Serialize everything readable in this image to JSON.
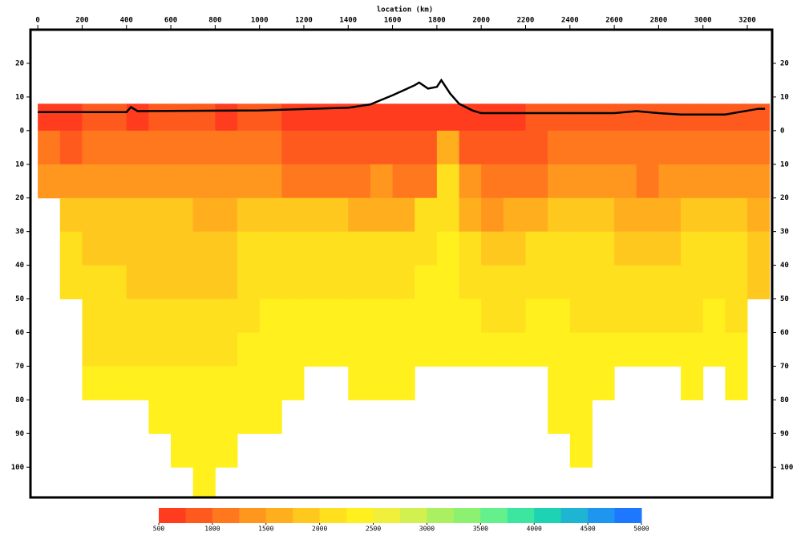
{
  "chart_data": {
    "type": "heatmap",
    "xlabel": "location (km)",
    "xlim": [
      -33,
      3312
    ],
    "ylim": [
      -30,
      109
    ],
    "xticks": [
      0,
      200,
      400,
      600,
      800,
      1000,
      1200,
      1400,
      1600,
      1800,
      2000,
      2200,
      2400,
      2600,
      2800,
      3000,
      3200
    ],
    "yticks": [
      {
        "value": -20,
        "label": "20"
      },
      {
        "value": -10,
        "label": "10"
      },
      0,
      10,
      20,
      30,
      40,
      50,
      60,
      70,
      80,
      90,
      100
    ],
    "x_bins": [
      0,
      100,
      200,
      300,
      400,
      500,
      600,
      700,
      800,
      900,
      1000,
      1100,
      1200,
      1300,
      1400,
      1500,
      1600,
      1700,
      1800,
      1900,
      2000,
      2100,
      2200,
      2300,
      2400,
      2500,
      2600,
      2700,
      2800,
      2900,
      3000,
      3100,
      3200,
      3300
    ],
    "y_bins": [
      -8,
      0,
      10,
      20,
      30,
      40,
      50,
      60,
      70,
      80,
      90,
      100,
      110
    ],
    "values": [
      [
        700,
        700,
        800,
        800,
        700,
        800,
        800,
        800,
        700,
        800,
        800,
        700,
        700,
        700,
        700,
        600,
        600,
        600,
        600,
        700,
        700,
        700,
        800,
        800,
        800,
        800,
        800,
        800,
        800,
        800,
        800,
        800,
        800
      ],
      [
        1100,
        900,
        1100,
        1100,
        1100,
        1200,
        1100,
        1000,
        1100,
        1100,
        1000,
        900,
        900,
        800,
        800,
        900,
        900,
        800,
        1600,
        900,
        800,
        800,
        900,
        1000,
        1100,
        1100,
        1100,
        1000,
        1000,
        1100,
        1100,
        1000,
        1000
      ],
      [
        1300,
        1300,
        1300,
        1400,
        1300,
        1400,
        1300,
        1300,
        1400,
        1400,
        1300,
        1200,
        1100,
        1100,
        1200,
        1300,
        1200,
        1100,
        2100,
        1300,
        1000,
        1100,
        1200,
        1300,
        1400,
        1300,
        1300,
        1200,
        1300,
        1300,
        1400,
        1300,
        1300
      ],
      [
        null,
        1900,
        1800,
        1800,
        1800,
        1800,
        1800,
        1700,
        1700,
        1800,
        1900,
        1900,
        1800,
        1800,
        1700,
        1700,
        1600,
        2000,
        2200,
        1500,
        1400,
        1500,
        1700,
        1800,
        1900,
        1800,
        1700,
        1600,
        1700,
        1800,
        1900,
        1800,
        1500
      ],
      [
        null,
        2100,
        1900,
        1800,
        1800,
        1800,
        1800,
        1800,
        1800,
        2000,
        2100,
        2100,
        2000,
        2000,
        2000,
        2100,
        2100,
        2200,
        2300,
        2000,
        1800,
        1900,
        2100,
        2100,
        2100,
        2000,
        1900,
        1800,
        1800,
        2000,
        2100,
        2000,
        1800
      ],
      [
        null,
        2100,
        2100,
        2000,
        1900,
        1900,
        1900,
        1800,
        1900,
        2100,
        2200,
        2200,
        2200,
        2200,
        2200,
        2200,
        2200,
        2300,
        2300,
        2200,
        2100,
        2100,
        2200,
        2200,
        2200,
        2200,
        2100,
        2100,
        2100,
        2200,
        2200,
        2100,
        1900
      ],
      [
        null,
        null,
        2200,
        2200,
        2100,
        2000,
        2100,
        2000,
        2100,
        2200,
        2300,
        2300,
        2300,
        2300,
        2300,
        2300,
        2300,
        2300,
        2300,
        2300,
        2200,
        2200,
        2300,
        2300,
        2200,
        2200,
        2200,
        2200,
        2200,
        2200,
        2300,
        2200,
        null
      ],
      [
        null,
        null,
        2200,
        2200,
        2200,
        2100,
        2200,
        2200,
        2200,
        2300,
        2300,
        2300,
        2300,
        2300,
        2300,
        2300,
        2300,
        2300,
        2300,
        2300,
        2300,
        2300,
        2300,
        2300,
        2300,
        2300,
        2300,
        2300,
        2300,
        2300,
        2300,
        2300,
        null
      ],
      [
        null,
        null,
        2300,
        2300,
        2300,
        2300,
        2300,
        2300,
        2300,
        2300,
        2300,
        2300,
        null,
        null,
        2300,
        2300,
        2300,
        null,
        null,
        null,
        null,
        null,
        null,
        2300,
        2300,
        2300,
        null,
        null,
        null,
        2300,
        null,
        2300,
        null
      ],
      [
        null,
        null,
        null,
        null,
        null,
        2400,
        2400,
        2400,
        2400,
        2400,
        2400,
        null,
        null,
        null,
        null,
        null,
        null,
        null,
        null,
        null,
        null,
        null,
        null,
        2400,
        2400,
        null,
        null,
        null,
        null,
        null,
        null,
        null,
        null
      ],
      [
        null,
        null,
        null,
        null,
        null,
        null,
        2400,
        2400,
        2400,
        null,
        null,
        null,
        null,
        null,
        null,
        null,
        null,
        null,
        null,
        null,
        null,
        null,
        null,
        null,
        2400,
        null,
        null,
        null,
        null,
        null,
        null,
        null,
        null
      ],
      [
        null,
        null,
        null,
        null,
        null,
        null,
        null,
        2400,
        null,
        null,
        null,
        null,
        null,
        null,
        null,
        null,
        null,
        null,
        null,
        null,
        null,
        null,
        null,
        null,
        null,
        null,
        null,
        null,
        null,
        null,
        null,
        null,
        null
      ]
    ],
    "series": [
      {
        "color": "#000000",
        "x": [
          0,
          400,
          420,
          450,
          1000,
          1400,
          1500,
          1600,
          1700,
          1720,
          1760,
          1800,
          1820,
          1860,
          1900,
          1960,
          2000,
          2600,
          2700,
          2800,
          2900,
          3100,
          3250,
          3280
        ],
        "values": [
          -5.5,
          -5.5,
          -7,
          -5.8,
          -6,
          -6.8,
          -7.8,
          -10.5,
          -13.5,
          -14.3,
          -12.5,
          -13,
          -15,
          -11,
          -8,
          -6,
          -5.2,
          -5.2,
          -5.8,
          -5.2,
          -4.8,
          -4.8,
          -6.5,
          -6.5
        ]
      }
    ],
    "colorbar": {
      "levels": [
        500,
        750,
        1000,
        1250,
        1500,
        1750,
        2000,
        2250,
        2500,
        2750,
        3000,
        3250,
        3500,
        3750,
        4000,
        4250,
        4500,
        4750,
        5000
      ],
      "colors": [
        "#ff3c1e",
        "#ff5a1e",
        "#ff781e",
        "#ff961e",
        "#ffaf1e",
        "#ffc81e",
        "#ffe01e",
        "#fff01e",
        "#f0f03c",
        "#d2f050",
        "#aaf060",
        "#8cf070",
        "#64f08c",
        "#3ce6a0",
        "#1ed2b4",
        "#1eb4d2",
        "#1e96f0",
        "#1e78ff"
      ],
      "ticks": [
        500,
        1000,
        1500,
        2000,
        2500,
        3000,
        3500,
        4000,
        4500,
        5000
      ]
    }
  }
}
